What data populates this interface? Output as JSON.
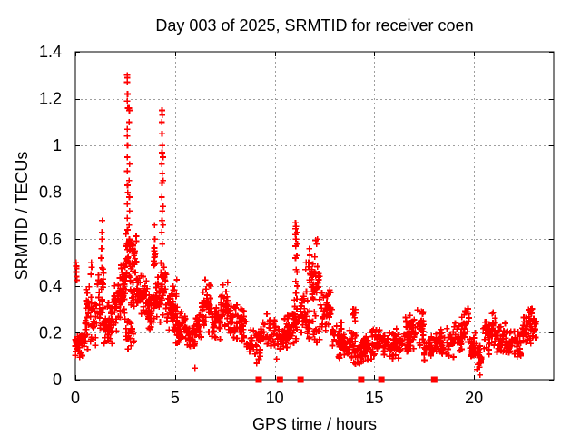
{
  "chart_data": {
    "type": "scatter",
    "title": "Day 003 of 2025, SRMTID for receiver coen",
    "xlabel": "GPS time / hours",
    "ylabel": "SRMTID / TECUs",
    "xlim": [
      0,
      24
    ],
    "ylim": [
      0,
      1.4
    ],
    "xticks": [
      {
        "v": 0,
        "label": "0"
      },
      {
        "v": 5,
        "label": "5"
      },
      {
        "v": 10,
        "label": "10"
      },
      {
        "v": 15,
        "label": "15"
      },
      {
        "v": 20,
        "label": "20"
      }
    ],
    "yticks": [
      {
        "v": 0,
        "label": "0"
      },
      {
        "v": 0.2,
        "label": "0.2"
      },
      {
        "v": 0.4,
        "label": "0.4"
      },
      {
        "v": 0.6,
        "label": "0.6"
      },
      {
        "v": 0.8,
        "label": "0.8"
      },
      {
        "v": 1,
        "label": "1"
      },
      {
        "v": 1.2,
        "label": "1.2"
      },
      {
        "v": 1.4,
        "label": "1.4"
      }
    ],
    "grid": true,
    "legend": "none",
    "colors": {
      "points": "#ff0000",
      "grid": "#9e9e9e",
      "axis": "#000000",
      "background": "#ffffff"
    },
    "seed": 20250103,
    "series": [
      {
        "name": "srmtid-points",
        "marker": "plus",
        "color": "#ff0000",
        "band_segments": [
          [
            0.0,
            0.5,
            0.08,
            0.22,
            40
          ],
          [
            0.5,
            1.1,
            0.12,
            0.42,
            48
          ],
          [
            1.1,
            1.45,
            0.18,
            0.52,
            30
          ],
          [
            1.45,
            1.95,
            0.13,
            0.35,
            40
          ],
          [
            1.95,
            2.3,
            0.2,
            0.47,
            36
          ],
          [
            2.3,
            2.55,
            0.26,
            0.5,
            28
          ],
          [
            2.5,
            3.0,
            0.1,
            0.3,
            24
          ],
          [
            2.55,
            2.8,
            0.35,
            0.65,
            30
          ],
          [
            2.8,
            3.1,
            0.3,
            0.62,
            34
          ],
          [
            3.1,
            3.6,
            0.26,
            0.46,
            48
          ],
          [
            3.6,
            4.0,
            0.2,
            0.42,
            36
          ],
          [
            3.95,
            4.05,
            0.45,
            0.62,
            8
          ],
          [
            4.0,
            4.3,
            0.22,
            0.45,
            24
          ],
          [
            4.3,
            4.6,
            0.26,
            0.55,
            26
          ],
          [
            4.6,
            5.0,
            0.18,
            0.4,
            30
          ],
          [
            4.9,
            5.15,
            0.25,
            0.47,
            12
          ],
          [
            5.0,
            5.6,
            0.14,
            0.3,
            40
          ],
          [
            5.6,
            6.1,
            0.12,
            0.27,
            34
          ],
          [
            6.1,
            6.35,
            0.15,
            0.3,
            18
          ],
          [
            6.35,
            6.85,
            0.18,
            0.44,
            40
          ],
          [
            6.85,
            7.3,
            0.15,
            0.33,
            32
          ],
          [
            7.3,
            7.8,
            0.18,
            0.43,
            36
          ],
          [
            7.8,
            8.6,
            0.13,
            0.33,
            44
          ],
          [
            8.6,
            9.3,
            0.08,
            0.24,
            30
          ],
          [
            9.3,
            10.1,
            0.1,
            0.29,
            42
          ],
          [
            10.1,
            10.5,
            0.08,
            0.26,
            22
          ],
          [
            10.5,
            10.9,
            0.12,
            0.3,
            28
          ],
          [
            10.9,
            11.3,
            0.15,
            0.35,
            28
          ],
          [
            11.3,
            11.7,
            0.15,
            0.42,
            28
          ],
          [
            11.7,
            12.3,
            0.28,
            0.58,
            46
          ],
          [
            11.7,
            12.3,
            0.12,
            0.28,
            18
          ],
          [
            12.3,
            12.9,
            0.18,
            0.42,
            36
          ],
          [
            12.9,
            13.5,
            0.08,
            0.25,
            38
          ],
          [
            13.5,
            14.05,
            0.05,
            0.22,
            32
          ],
          [
            13.95,
            14.1,
            0.22,
            0.35,
            8
          ],
          [
            14.05,
            14.6,
            0.06,
            0.2,
            38
          ],
          [
            14.6,
            15.2,
            0.08,
            0.22,
            38
          ],
          [
            15.2,
            15.8,
            0.08,
            0.23,
            34
          ],
          [
            15.8,
            16.5,
            0.08,
            0.22,
            40
          ],
          [
            16.5,
            17.1,
            0.1,
            0.28,
            42
          ],
          [
            17.1,
            17.5,
            0.12,
            0.33,
            26
          ],
          [
            17.5,
            18.2,
            0.07,
            0.2,
            38
          ],
          [
            18.2,
            19.0,
            0.08,
            0.24,
            42
          ],
          [
            19.0,
            19.4,
            0.1,
            0.26,
            26
          ],
          [
            19.4,
            19.8,
            0.12,
            0.34,
            30
          ],
          [
            19.8,
            20.15,
            0.08,
            0.22,
            22
          ],
          [
            20.15,
            20.45,
            0.02,
            0.15,
            22
          ],
          [
            20.45,
            21.1,
            0.1,
            0.31,
            46
          ],
          [
            21.1,
            21.8,
            0.08,
            0.25,
            42
          ],
          [
            21.8,
            22.4,
            0.08,
            0.22,
            38
          ],
          [
            22.4,
            23.0,
            0.12,
            0.34,
            42
          ],
          [
            23.0,
            23.15,
            0.14,
            0.3,
            10
          ]
        ],
        "peak_points": [
          [
            0.03,
            0.5
          ],
          [
            0.04,
            0.485
          ],
          [
            0.05,
            0.46
          ],
          [
            0.055,
            0.475
          ],
          [
            0.06,
            0.44
          ],
          [
            0.07,
            0.425
          ],
          [
            0.78,
            0.45
          ],
          [
            0.82,
            0.48
          ],
          [
            0.8,
            0.5
          ],
          [
            1.3,
            0.52
          ],
          [
            1.32,
            0.56
          ],
          [
            1.34,
            0.6
          ],
          [
            1.33,
            0.63
          ],
          [
            1.35,
            0.68
          ],
          [
            2.6,
            1.3
          ],
          [
            2.61,
            1.29
          ],
          [
            2.6,
            1.27
          ],
          [
            2.62,
            1.22
          ],
          [
            2.6,
            1.19
          ],
          [
            2.63,
            1.16
          ],
          [
            2.61,
            1.07
          ],
          [
            2.6,
            1.04
          ],
          [
            2.62,
            1.0
          ],
          [
            2.61,
            0.95
          ],
          [
            2.6,
            0.89
          ],
          [
            2.62,
            0.83
          ],
          [
            2.63,
            0.8
          ],
          [
            2.6,
            0.75
          ],
          [
            2.61,
            0.69
          ],
          [
            2.62,
            0.64
          ],
          [
            2.6,
            0.57
          ],
          [
            2.63,
            0.52
          ],
          [
            2.7,
            1.16
          ],
          [
            2.71,
            1.15
          ],
          [
            2.7,
            1.1
          ],
          [
            2.72,
            0.92
          ],
          [
            2.7,
            0.85
          ],
          [
            2.71,
            0.78
          ],
          [
            2.72,
            0.72
          ],
          [
            2.7,
            0.66
          ],
          [
            2.71,
            0.6
          ],
          [
            2.72,
            0.55
          ],
          [
            3.96,
            0.55
          ],
          [
            3.97,
            0.66
          ],
          [
            3.97,
            0.5
          ],
          [
            3.98,
            0.6
          ],
          [
            4.34,
            1.1
          ],
          [
            4.34,
            0.92
          ],
          [
            4.34,
            0.78
          ],
          [
            4.34,
            0.63
          ],
          [
            4.35,
            1.15
          ],
          [
            4.35,
            1.05
          ],
          [
            4.35,
            0.97
          ],
          [
            4.35,
            0.84
          ],
          [
            4.35,
            0.68
          ],
          [
            4.36,
            1.13
          ],
          [
            4.36,
            1.0
          ],
          [
            4.36,
            0.88
          ],
          [
            4.36,
            0.72
          ],
          [
            4.36,
            0.58
          ],
          [
            4.4,
            0.95
          ],
          [
            4.41,
            0.85
          ],
          [
            4.4,
            0.74
          ],
          [
            4.41,
            0.66
          ],
          [
            11.04,
            0.67
          ],
          [
            11.06,
            0.655
          ],
          [
            11.05,
            0.645
          ],
          [
            11.04,
            0.62
          ],
          [
            11.06,
            0.6
          ],
          [
            11.05,
            0.57
          ],
          [
            11.04,
            0.52
          ],
          [
            11.07,
            0.47
          ],
          [
            11.05,
            0.42
          ],
          [
            11.06,
            0.37
          ],
          [
            11.12,
            0.63
          ],
          [
            11.13,
            0.58
          ],
          [
            11.11,
            0.53
          ],
          [
            11.12,
            0.46
          ],
          [
            11.13,
            0.4
          ],
          [
            11.55,
            0.47
          ],
          [
            11.57,
            0.5
          ],
          [
            12.05,
            0.595
          ],
          [
            12.1,
            0.58
          ],
          [
            12.15,
            0.6
          ],
          [
            6.0,
            0.05
          ],
          [
            9.1,
            0.07
          ],
          [
            20.3,
            0.02
          ]
        ]
      },
      {
        "name": "baseline-flag-squares",
        "marker": "filled-square",
        "color": "#ff0000",
        "y": 0,
        "x_hours": [
          9.2,
          10.26,
          11.3,
          14.34,
          15.35,
          18.0
        ]
      }
    ]
  }
}
